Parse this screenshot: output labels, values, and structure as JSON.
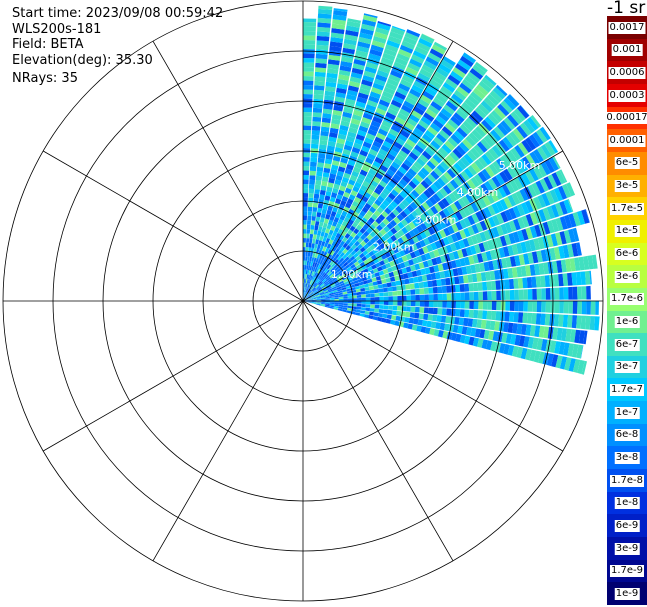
{
  "header": {
    "start_time": "Start time: 2023/09/08 00:59:42",
    "instrument": "WLS200s-181",
    "field": "Field: BETA",
    "elevation": "Elevation(deg): 35.30",
    "nrays": "NRays: 35"
  },
  "colorbar": {
    "unit_label": "-1 sr",
    "labels": [
      "0.0017",
      "0.001",
      "0.0006",
      "0.0003",
      "0.00017",
      "0.0001",
      "6e-5",
      "3e-5",
      "1.7e-5",
      "1e-5",
      "6e-6",
      "3e-6",
      "1.7e-6",
      "1e-6",
      "6e-7",
      "3e-7",
      "1.7e-7",
      "1e-7",
      "6e-8",
      "3e-8",
      "1.7e-8",
      "1e-8",
      "6e-9",
      "3e-9",
      "1.7e-9",
      "1e-9"
    ],
    "colors": [
      "#7a0000",
      "#a00000",
      "#c40000",
      "#e40000",
      "#ff3000",
      "#ff6000",
      "#ff8c00",
      "#ffb000",
      "#ffd200",
      "#f0f000",
      "#d8ff20",
      "#b8ff40",
      "#98ff70",
      "#70f090",
      "#40e0c0",
      "#20d0e0",
      "#00c8ff",
      "#00b0ff",
      "#0090ff",
      "#0070ff",
      "#0050f0",
      "#0030e0",
      "#0020c8",
      "#0010a8",
      "#000890",
      "#000070"
    ]
  },
  "chart_data": {
    "type": "ppi",
    "title": "",
    "field": "BETA",
    "elevation_deg": 35.3,
    "nrays": 35,
    "range_rings_km": [
      1,
      2,
      3,
      4,
      5,
      6
    ],
    "range_ring_labels": [
      "1.00km",
      "2.00km",
      "3.00km",
      "4.00km",
      "5.00km"
    ],
    "azimuth_start_deg": 0,
    "azimuth_end_deg": 105,
    "max_range_km": 5.8,
    "dominant_value_range": [
      "1e-8",
      "1.7e-6"
    ],
    "azimuth_gridlines_deg": [
      0,
      30,
      60,
      90,
      120,
      150,
      180,
      210,
      240,
      270,
      300,
      330
    ]
  }
}
